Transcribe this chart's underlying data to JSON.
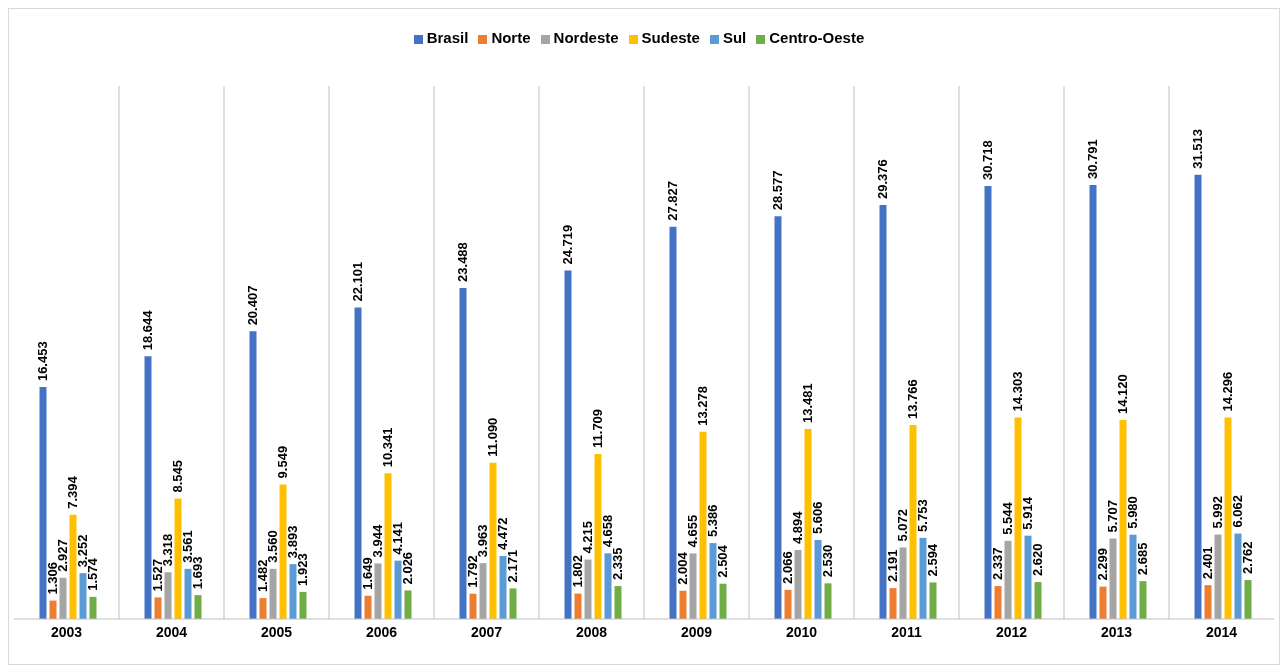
{
  "chart_data": {
    "type": "bar",
    "categories": [
      "2003",
      "2004",
      "2005",
      "2006",
      "2007",
      "2008",
      "2009",
      "2010",
      "2011",
      "2012",
      "2013",
      "2014"
    ],
    "series": [
      {
        "name": "Brasil",
        "color": "#4472c4",
        "values": [
          16.453,
          18.644,
          20.407,
          22.101,
          23.488,
          24.719,
          27.827,
          28.577,
          29.376,
          30.718,
          30.791,
          31.513
        ],
        "value_labels": [
          "16.453",
          "18.644",
          "20.407",
          "22.101",
          "23.488",
          "24.719",
          "27.827",
          "28.577",
          "29.376",
          "30.718",
          "30.791",
          "31.513"
        ]
      },
      {
        "name": "Norte",
        "color": "#ed7d31",
        "values": [
          1.306,
          1.527,
          1.482,
          1.649,
          1.792,
          1.802,
          2.004,
          2.066,
          2.191,
          2.337,
          2.299,
          2.401
        ],
        "value_labels": [
          "1.306",
          "1.527",
          "1.482",
          "1.649",
          "1.792",
          "1.802",
          "2.004",
          "2.066",
          "2.191",
          "2.337",
          "2.299",
          "2.401"
        ]
      },
      {
        "name": "Nordeste",
        "color": "#a5a5a5",
        "values": [
          2.927,
          3.318,
          3.56,
          3.944,
          3.963,
          4.215,
          4.655,
          4.894,
          5.072,
          5.544,
          5.707,
          5.992
        ],
        "value_labels": [
          "2.927",
          "3.318",
          "3.560",
          "3.944",
          "3.963",
          "4.215",
          "4.655",
          "4.894",
          "5.072",
          "5.544",
          "5.707",
          "5.992"
        ]
      },
      {
        "name": "Sudeste",
        "color": "#ffc000",
        "values": [
          7.394,
          8.545,
          9.549,
          10.341,
          11.09,
          11.709,
          13.278,
          13.481,
          13.766,
          14.303,
          14.12,
          14.296
        ],
        "value_labels": [
          "7.394",
          "8.545",
          "9.549",
          "10.341",
          "11.090",
          "11.709",
          "13.278",
          "13.481",
          "13.766",
          "14.303",
          "14.120",
          "14.296"
        ]
      },
      {
        "name": "Sul",
        "color": "#5b9bd5",
        "values": [
          3.252,
          3.561,
          3.893,
          4.141,
          4.472,
          4.658,
          5.386,
          5.606,
          5.753,
          5.914,
          5.98,
          6.062
        ],
        "value_labels": [
          "3.252",
          "3.561",
          "3.893",
          "4.141",
          "4.472",
          "4.658",
          "5.386",
          "5.606",
          "5.753",
          "5.914",
          "5.980",
          "6.062"
        ]
      },
      {
        "name": "Centro-Oeste",
        "color": "#70ad47",
        "values": [
          1.574,
          1.693,
          1.923,
          2.026,
          2.171,
          2.335,
          2.504,
          2.53,
          2.594,
          2.62,
          2.685,
          2.762
        ],
        "value_labels": [
          "1.574",
          "1.693",
          "1.923",
          "2.026",
          "2.171",
          "2.335",
          "2.504",
          "2.530",
          "2.594",
          "2.620",
          "2.685",
          "2.762"
        ]
      }
    ],
    "grid": "x",
    "legend": "top"
  }
}
